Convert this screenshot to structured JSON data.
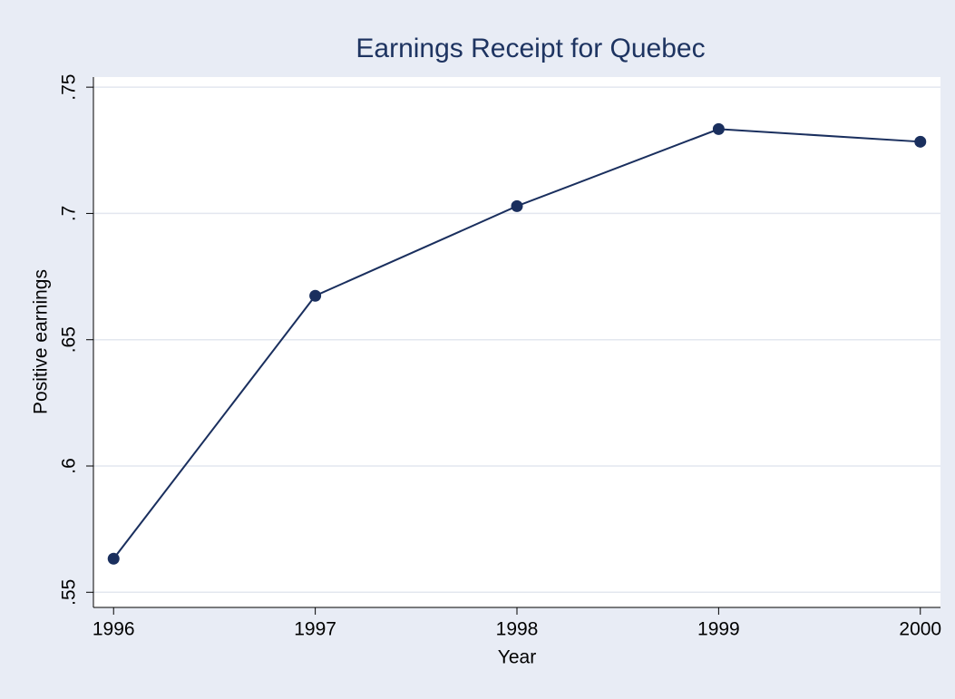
{
  "chart_data": {
    "type": "line",
    "title": "Earnings Receipt for Quebec",
    "x_label": "Year",
    "y_label": "Positive earnings",
    "x": [
      1996,
      1997,
      1998,
      1999,
      2000
    ],
    "series": [
      {
        "name": "Positive earnings",
        "color": "#1a2f5e",
        "values": [
          0.5633,
          0.6674,
          0.7029,
          0.7334,
          0.7284
        ]
      }
    ],
    "xlim": [
      1995.9,
      2000.1
    ],
    "xticks": [
      1996,
      1997,
      1998,
      1999,
      2000
    ],
    "ylim": [
      0.544,
      0.754
    ],
    "yticks": [
      {
        "value": 0.55,
        "label": ".55"
      },
      {
        "value": 0.6,
        "label": ".6"
      },
      {
        "value": 0.65,
        "label": ".65"
      },
      {
        "value": 0.7,
        "label": ".7"
      },
      {
        "value": 0.75,
        "label": ".75"
      }
    ],
    "grid": true
  }
}
